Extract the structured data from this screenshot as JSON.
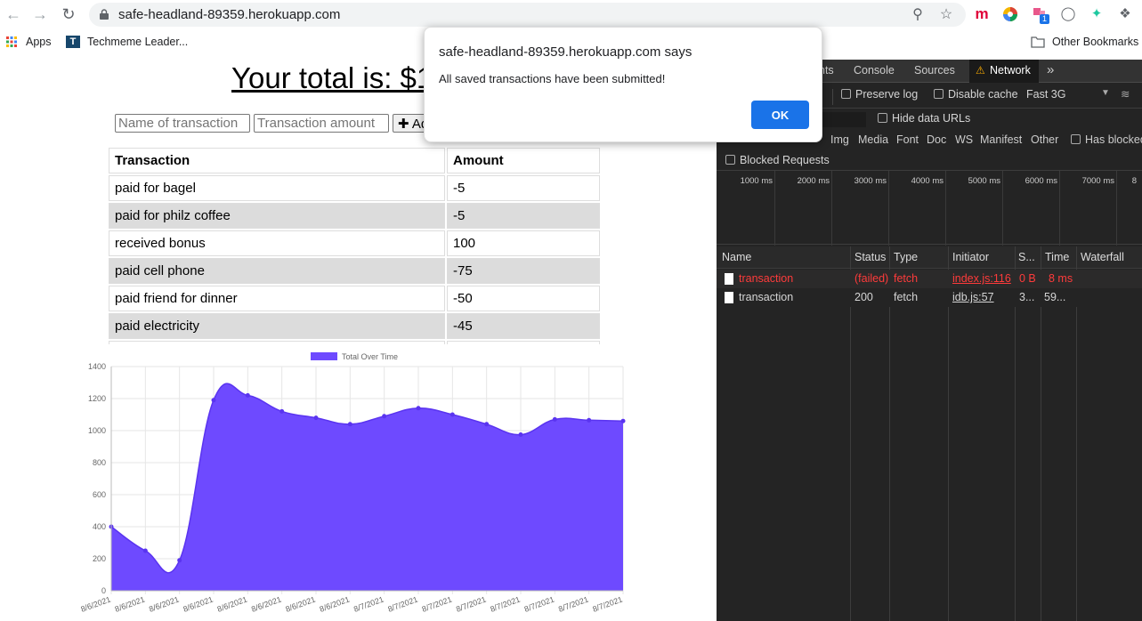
{
  "browser": {
    "url": "safe-headland-89359.herokuapp.com",
    "bookmarks": {
      "apps_label": "Apps",
      "techmeme_label": "Techmeme Leader...",
      "other_label": "Other Bookmarks"
    },
    "extension_badge": "1"
  },
  "page": {
    "total_text": "Your total is: $1",
    "name_placeholder": "Name of transaction",
    "amount_placeholder": "Transaction amount",
    "add_label": "✚ Add",
    "table": {
      "headers": [
        "Transaction",
        "Amount"
      ],
      "rows": [
        [
          "paid for bagel",
          "-5"
        ],
        [
          "paid for philz coffee",
          "-5"
        ],
        [
          "received bonus",
          "100"
        ],
        [
          "paid cell phone",
          "-75"
        ],
        [
          "paid friend for dinner",
          "-50"
        ],
        [
          "paid electricity",
          "-45"
        ]
      ]
    }
  },
  "chart_data": {
    "type": "area",
    "legend": "Total Over Time",
    "legend_color": "#6e4aff",
    "fill_color": "#6e4aff",
    "ylim": [
      0,
      1400
    ],
    "yticks": [
      "0",
      "200",
      "400",
      "600",
      "800",
      "1000",
      "1200",
      "1400"
    ],
    "x": [
      "8/6/2021",
      "8/6/2021",
      "8/6/2021",
      "8/6/2021",
      "8/6/2021",
      "8/6/2021",
      "8/6/2021",
      "8/6/2021",
      "8/7/2021",
      "8/7/2021",
      "8/7/2021",
      "8/7/2021",
      "8/7/2021",
      "8/7/2021",
      "8/7/2021",
      "8/7/2021"
    ],
    "values": [
      400,
      250,
      190,
      1190,
      1220,
      1120,
      1080,
      1040,
      1090,
      1140,
      1100,
      1040,
      975,
      1070,
      1065,
      1060
    ]
  },
  "devtools": {
    "tabs": [
      "nts",
      "Console",
      "Sources",
      "Network"
    ],
    "more_tabs": "»",
    "preserve_log": "Preserve log",
    "disable_cache": "Disable cache",
    "throttle": "Fast 3G",
    "hide_data_urls": "Hide data URLs",
    "filter_types": [
      "Img",
      "Media",
      "Font",
      "Doc",
      "WS",
      "Manifest",
      "Other"
    ],
    "has_blocked": "Has blocked",
    "blocked_requests": "Blocked Requests",
    "timeline_ticks": [
      "1000 ms",
      "2000 ms",
      "3000 ms",
      "4000 ms",
      "5000 ms",
      "6000 ms",
      "7000 ms",
      "8"
    ],
    "columns": [
      "Name",
      "Status",
      "Type",
      "Initiator",
      "S...",
      "Time",
      "Waterfall"
    ],
    "requests": [
      {
        "name": "transaction",
        "status": "(failed)",
        "type": "fetch",
        "initiator": "index.js:116",
        "size": "0 B",
        "time": "8 ms",
        "failed": true
      },
      {
        "name": "transaction",
        "status": "200",
        "type": "fetch",
        "initiator": "idb.js:57",
        "size": "3...",
        "time": "59...",
        "failed": false
      }
    ],
    "failed_color": "#ff3b3b"
  },
  "alert": {
    "title": "safe-headland-89359.herokuapp.com says",
    "message": "All saved transactions have been submitted!",
    "ok_label": "OK"
  }
}
